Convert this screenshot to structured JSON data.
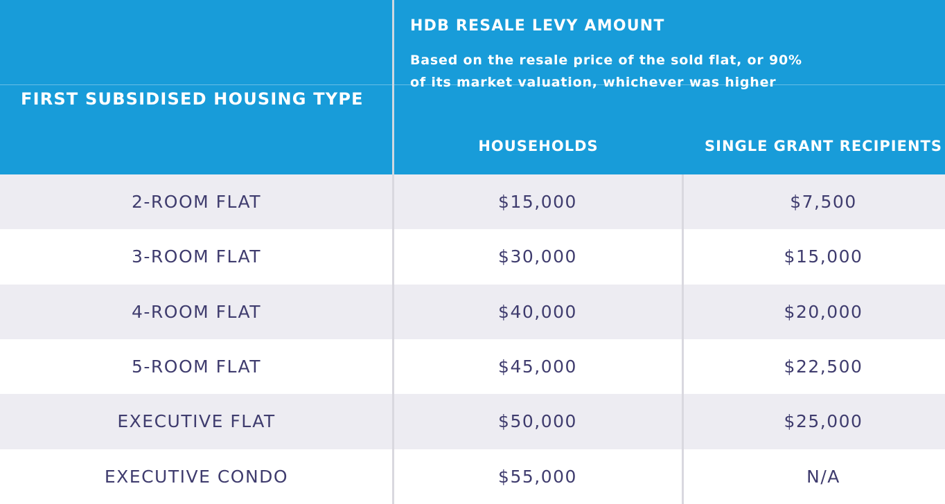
{
  "colors": {
    "header_bg": "#189cd9",
    "header_text": "#ffffff",
    "row_bg": "#ffffff",
    "alt_row_bg": "#edecf2",
    "body_text": "#3f3c6e",
    "divider": "#d9d8df"
  },
  "header": {
    "col1_title": "FIRST SUBSIDISED HOUSING TYPE",
    "levy_title": "HDB RESALE LEVY AMOUNT",
    "levy_subtitle_line1": "Based on the resale price of the sold flat, or 90%",
    "levy_subtitle_line2": "of its market valuation, whichever was higher",
    "households_label": "HOUSEHOLDS",
    "single_label": "SINGLE GRANT RECIPIENTS"
  },
  "chart_data": {
    "type": "table",
    "title": "HDB RESALE LEVY AMOUNT",
    "subtitle": "Based on the resale price of the sold flat, or 90% of its market valuation, whichever was higher",
    "columns": [
      "FIRST SUBSIDISED HOUSING TYPE",
      "HOUSEHOLDS",
      "SINGLE GRANT RECIPIENTS"
    ],
    "rows": [
      [
        "2-ROOM FLAT",
        "$15,000",
        "$7,500"
      ],
      [
        "3-ROOM FLAT",
        "$30,000",
        "$15,000"
      ],
      [
        "4-ROOM FLAT",
        "$40,000",
        "$20,000"
      ],
      [
        "5-ROOM FLAT",
        "$45,000",
        "$22,500"
      ],
      [
        "EXECUTIVE FLAT",
        "$50,000",
        "$25,000"
      ],
      [
        "EXECUTIVE CONDO",
        "$55,000",
        "N/A"
      ]
    ]
  }
}
